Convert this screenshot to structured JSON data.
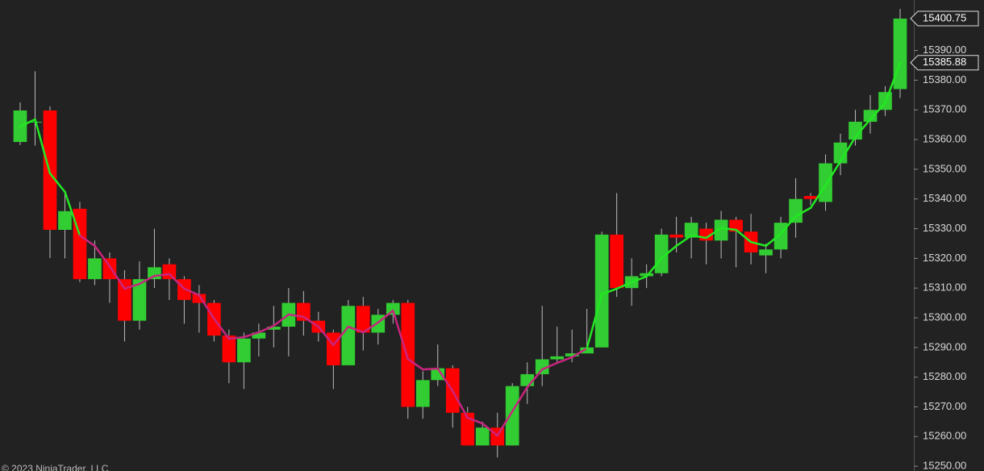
{
  "chart_data": {
    "type": "candlestick",
    "footer": "© 2023 NinjaTrader, LLC",
    "open": [
      15359.2,
      15366,
      15369.8,
      15329.6,
      15336.7,
      15313,
      15320,
      15313,
      15299,
      15313,
      15318,
      15313,
      15308,
      15305,
      15294,
      15285,
      15293,
      15296,
      15297,
      15305,
      15299,
      15295,
      15284,
      15304,
      15295,
      15301,
      15305,
      15270,
      15279,
      15283,
      15268,
      15257,
      15263,
      15257,
      15277,
      15281,
      15286,
      15287,
      15288,
      15290,
      15328,
      15310,
      15314,
      15315,
      15328,
      15327,
      15330,
      15326,
      15333,
      15329,
      15321,
      15323,
      15332,
      15341,
      15339,
      15352,
      15360,
      15366,
      15370,
      15377
    ],
    "high": [
      15372.5,
      15383,
      15371.2,
      15341.8,
      15339,
      15326,
      15322,
      15316,
      15319,
      15330,
      15320,
      15314,
      15311,
      15306,
      15296,
      15295,
      15298,
      15304,
      15310,
      15309,
      15302,
      15296,
      15306,
      15307,
      15303,
      15306,
      15306,
      15282,
      15291,
      15284,
      15270,
      15265,
      15268,
      15278,
      15285,
      15304,
      15297,
      15296,
      15303,
      15329,
      15342,
      15320,
      15318,
      15330,
      15334,
      15334,
      15332,
      15336,
      15334,
      15335,
      15325,
      15334,
      15347,
      15342,
      15355,
      15362,
      15370,
      15375,
      15378,
      15404
    ],
    "low": [
      15358.2,
      15358,
      15320.1,
      15320,
      15312,
      15311,
      15305,
      15292,
      15296,
      15310,
      15306,
      15298,
      15295,
      15292,
      15278,
      15276,
      15287,
      15290,
      15287,
      15294,
      15292,
      15276,
      15284,
      15289,
      15291,
      15298,
      15266,
      15266,
      15277,
      15263,
      15257,
      15257,
      15253,
      15257,
      15271,
      15277,
      15285,
      15285,
      15288,
      15290,
      15307,
      15304,
      15310,
      15314,
      15322,
      15320,
      15318,
      15320,
      15317,
      15318,
      15315,
      15320,
      15327,
      15338,
      15336,
      15348,
      15358,
      15362,
      15368,
      15374
    ],
    "close": [
      15369.8,
      15366,
      15329.6,
      15335.9,
      15313,
      15320,
      15313,
      15299,
      15313,
      15317,
      15313,
      15306,
      15305,
      15294,
      15285,
      15293,
      15295,
      15297,
      15305,
      15299,
      15295,
      15284,
      15304,
      15295,
      15301,
      15305,
      15270,
      15279,
      15283,
      15268,
      15257,
      15263,
      15257,
      15277,
      15281,
      15286,
      15287,
      15288,
      15290,
      15328,
      15310,
      15314,
      15315,
      15328,
      15327,
      15332,
      15326,
      15333,
      15329,
      15322,
      15323,
      15332,
      15340,
      15340,
      15352,
      15359,
      15366,
      15370,
      15376,
      15400.75
    ],
    "up_color": "#32cd32",
    "down_color": "#ff0000",
    "ma": {
      "values": [
        15364.4,
        15366.8,
        15348.6,
        15342.4,
        15327.7,
        15324.2,
        15317.4,
        15309.8,
        15311.4,
        15314.1,
        15314.7,
        15309.8,
        15307.6,
        15299.7,
        15292.9,
        15293.5,
        15295.1,
        15297.3,
        15301.1,
        15300.3,
        15297,
        15290.8,
        15297,
        15295.1,
        15298.4,
        15302.4,
        15286.1,
        15282.6,
        15282.9,
        15275.3,
        15266.3,
        15264.4,
        15260.3,
        15268.5,
        15276.6,
        15282.6,
        15284.8,
        15286.7,
        15289.7,
        15307.9,
        15309.8,
        15312,
        15313.9,
        15320.1,
        15324.2,
        15327.7,
        15326.9,
        15330.2,
        15329.6,
        15325.5,
        15324.2,
        15328.3,
        15334.2,
        15337,
        15344.6,
        15352.7,
        15360.9,
        15366.8,
        15372.3,
        15385.88
      ],
      "colors": [
        "#22e822",
        "#22e822",
        "#22e822",
        "#22e822",
        "#22e822",
        "#c8257f",
        "#c8257f",
        "#c8257f",
        "#c8257f",
        "#c8257f",
        "#c8257f",
        "#c8257f",
        "#c8257f",
        "#c8257f",
        "#c8257f",
        "#c8257f",
        "#c8257f",
        "#c8257f",
        "#c8257f",
        "#c8257f",
        "#c8257f",
        "#c8257f",
        "#c8257f",
        "#c8257f",
        "#c8257f",
        "#c8257f",
        "#c8257f",
        "#c8257f",
        "#c8257f",
        "#c8257f",
        "#c8257f",
        "#c8257f",
        "#c8257f",
        "#c8257f",
        "#c8257f",
        "#c8257f",
        "#c8257f",
        "#c8257f",
        "#c8257f",
        "#22e822",
        "#22e822",
        "#22e822",
        "#22e822",
        "#22e822",
        "#22e822",
        "#22e822",
        "#22e822",
        "#22e822",
        "#22e822",
        "#22e822",
        "#22e822",
        "#22e822",
        "#22e822",
        "#22e822",
        "#22e822",
        "#22e822",
        "#22e822",
        "#22e822",
        "#22e822",
        "#22e822"
      ]
    },
    "price_labels": [
      {
        "value": 15400.75,
        "label": "15400.75"
      },
      {
        "value": 15385.88,
        "label": "15385.88"
      }
    ],
    "ylim": [
      15248.4,
      15407
    ],
    "yticks": [
      {
        "value": 15250,
        "label": "15250.00"
      },
      {
        "value": 15260,
        "label": "15260.00"
      },
      {
        "value": 15270,
        "label": "15270.00"
      },
      {
        "value": 15280,
        "label": "15280.00"
      },
      {
        "value": 15290,
        "label": "15290.00"
      },
      {
        "value": 15300,
        "label": "15300.00"
      },
      {
        "value": 15310,
        "label": "15310.00"
      },
      {
        "value": 15320,
        "label": "15320.00"
      },
      {
        "value": 15330,
        "label": "15330.00"
      },
      {
        "value": 15340,
        "label": "15340.00"
      },
      {
        "value": 15350,
        "label": "15350.00"
      },
      {
        "value": 15360,
        "label": "15360.00"
      },
      {
        "value": 15370,
        "label": "15370.00"
      },
      {
        "value": 15380,
        "label": "15380.00"
      },
      {
        "value": 15390,
        "label": "15390.00"
      }
    ]
  }
}
